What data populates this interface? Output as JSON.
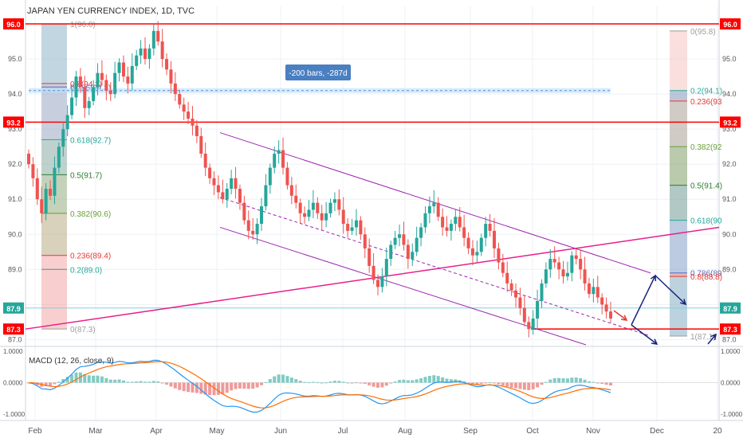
{
  "title": "JAPAN YEN CURRENCY INDEX, 1D, TVC",
  "measure_label": "-200 bars, -287d",
  "colors": {
    "up": "#26a69a",
    "down": "#ef5350",
    "red_line": "#ff0000",
    "magenta": "#e91e8c",
    "channel": "#9c27b0",
    "cyan": "#7fd3e0",
    "blue": "#1a237e",
    "macd_line": "#2196f3",
    "signal_line": "#ff6d00"
  },
  "price_axis": {
    "ticks": [
      "96.0",
      "95.0",
      "94.0",
      "93.0",
      "92.0",
      "91.0",
      "90.0",
      "89.0",
      "88.0",
      "87.0"
    ],
    "markers": [
      {
        "label": "96.0",
        "value": 96.0,
        "color": "#ff0000"
      },
      {
        "label": "93.2",
        "value": 93.2,
        "color": "#ff0000"
      },
      {
        "label": "87.9",
        "value": 87.9,
        "color": "#26a69a"
      },
      {
        "label": "87.3",
        "value": 87.3,
        "color": "#ff0000"
      }
    ]
  },
  "macd_axis": {
    "ticks": [
      "1.0000",
      "0.0000",
      "-1.0000"
    ],
    "title": "MACD (12, 26, close, 9)"
  },
  "time_axis": {
    "labels": [
      "Feb",
      "Mar",
      "Apr",
      "May",
      "Jun",
      "Jul",
      "Aug",
      "Sep",
      "Oct",
      "Nov",
      "Dec",
      "20"
    ]
  },
  "fib_left": {
    "levels": [
      {
        "text": "1(96.0)",
        "value": 96.0,
        "color": "#9e9e9e"
      },
      {
        "text": "0.8(94.3)",
        "value": 94.3,
        "color": "#e53935"
      },
      {
        "text": "0.786(94.2)",
        "value": 94.2,
        "color": "#5c6bc0"
      },
      {
        "text": "0.618(92.7)",
        "value": 92.7,
        "color": "#26a69a"
      },
      {
        "text": "0.5(91.7)",
        "value": 91.7,
        "color": "#2e7d32"
      },
      {
        "text": "0.382(90.6)",
        "value": 90.6,
        "color": "#689f38"
      },
      {
        "text": "0.236(89.4)",
        "value": 89.4,
        "color": "#e53935"
      },
      {
        "text": "0.2(89.0)",
        "value": 89.0,
        "color": "#26a69a"
      },
      {
        "text": "0(87.3)",
        "value": 87.3,
        "color": "#9e9e9e"
      }
    ]
  },
  "fib_right": {
    "levels": [
      {
        "text": "0(95.8)",
        "value": 95.8,
        "color": "#9e9e9e"
      },
      {
        "text": "0.2(94.1)",
        "value": 94.1,
        "color": "#26a69a"
      },
      {
        "text": "0.236(93",
        "value": 93.8,
        "color": "#e53935"
      },
      {
        "text": "0.382(92",
        "value": 92.5,
        "color": "#689f38"
      },
      {
        "text": "0.5(91.4)",
        "value": 91.4,
        "color": "#2e7d32"
      },
      {
        "text": "0.618(90",
        "value": 90.4,
        "color": "#26a69a"
      },
      {
        "text": "0.786(89",
        "value": 88.9,
        "color": "#5c6bc0"
      },
      {
        "text": "0.8(88.8)",
        "value": 88.8,
        "color": "#e53935"
      },
      {
        "text": "1(87.1)",
        "value": 87.1,
        "color": "#9e9e9e"
      }
    ]
  },
  "chart_data": {
    "type": "candlestick",
    "title": "JAPAN YEN CURRENCY INDEX, 1D, TVC",
    "ylim": [
      86.85,
      96.5
    ],
    "macd_ylim": [
      -1.0,
      1.0
    ],
    "x_labels": [
      "Feb",
      "Mar",
      "Apr",
      "May",
      "Jun",
      "Jul",
      "Aug",
      "Sep",
      "Oct",
      "Nov",
      "Dec",
      "20"
    ],
    "closes": [
      92.0,
      91.6,
      91.0,
      90.6,
      91.3,
      91.1,
      91.9,
      92.5,
      93.0,
      93.4,
      93.9,
      94.5,
      94.2,
      93.6,
      93.8,
      94.2,
      94.6,
      94.4,
      94.1,
      94.0,
      94.6,
      94.9,
      94.5,
      94.3,
      94.8,
      95.1,
      95.3,
      95.0,
      95.3,
      95.8,
      95.5,
      95.0,
      94.7,
      94.3,
      94.0,
      93.7,
      93.5,
      93.3,
      93.1,
      92.8,
      92.3,
      91.9,
      91.6,
      91.4,
      91.2,
      91.0,
      91.3,
      91.6,
      91.3,
      90.9,
      90.4,
      90.1,
      90.0,
      90.3,
      90.8,
      91.4,
      91.9,
      92.3,
      92.4,
      91.9,
      91.4,
      91.1,
      90.9,
      90.6,
      90.5,
      90.7,
      90.9,
      90.6,
      90.4,
      90.6,
      90.9,
      91.0,
      90.7,
      90.3,
      90.1,
      90.2,
      90.4,
      90.0,
      89.6,
      89.1,
      88.7,
      88.5,
      88.8,
      89.3,
      89.7,
      89.9,
      90.0,
      89.7,
      89.3,
      89.5,
      89.9,
      90.2,
      90.6,
      90.8,
      90.9,
      90.5,
      90.2,
      90.1,
      90.3,
      90.5,
      90.2,
      89.9,
      89.6,
      89.4,
      89.5,
      89.9,
      90.3,
      90.1,
      89.6,
      89.2,
      88.9,
      88.6,
      88.4,
      88.2,
      87.9,
      87.5,
      87.3,
      87.6,
      88.1,
      88.6,
      89.0,
      89.3,
      89.2,
      89.0,
      88.8,
      88.9,
      89.4,
      89.3,
      89.0,
      88.6,
      88.3,
      88.5,
      88.2,
      88.0,
      87.8,
      87.6
    ]
  }
}
